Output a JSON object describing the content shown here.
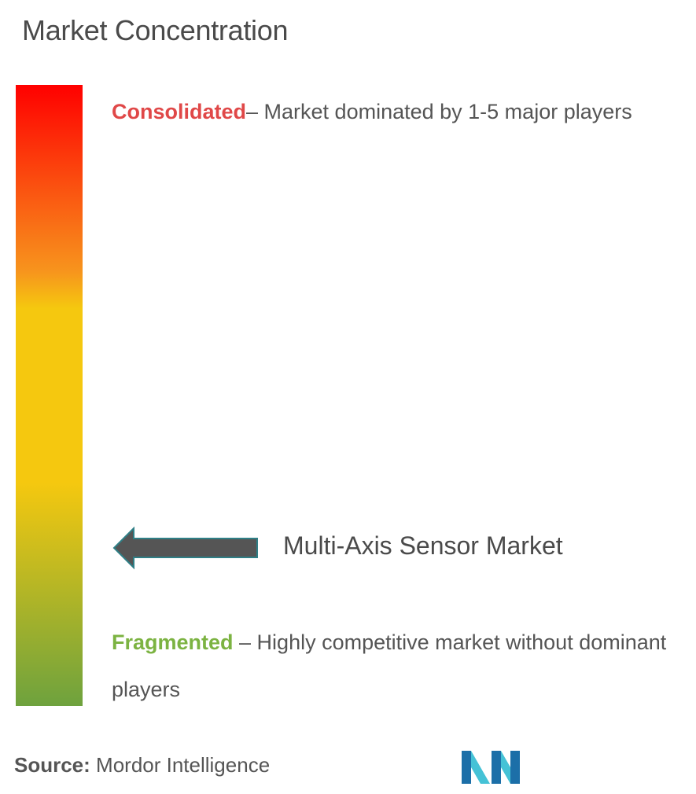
{
  "title": "Market Concentration",
  "scale": {
    "gradient_colors": [
      "#ff0000",
      "#f7941d",
      "#f5c80f",
      "#f5c80f",
      "#6ea23e"
    ]
  },
  "consolidated": {
    "term": "Consolidated",
    "description": "– Market dominated by 1-5 major players",
    "color": "#e04848"
  },
  "fragmented": {
    "term": "Fragmented",
    "description": " – Highly competitive market without dominant players",
    "color": "#7cb342"
  },
  "market": {
    "name": "Multi-Axis Sensor Market"
  },
  "source": {
    "label": "Source:",
    "value": " Mordor Intelligence"
  },
  "logo": {
    "icon": "mordor-intelligence-logo",
    "colors": [
      "#1c6fa8",
      "#45c2d6"
    ]
  }
}
